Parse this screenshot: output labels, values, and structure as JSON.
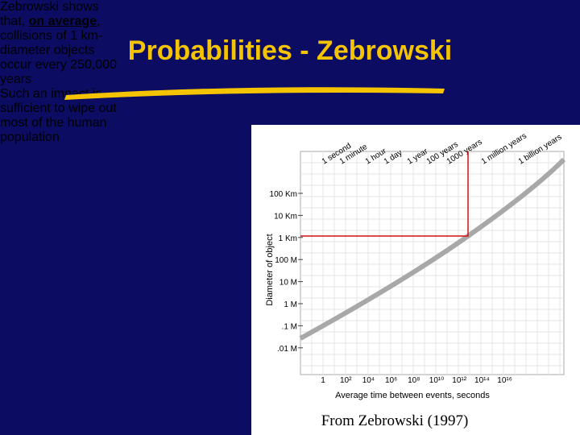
{
  "slide": {
    "title": "Probabilities - Zebrowski",
    "bullets": [
      {
        "lines": [
          [
            "Zebrowski shows"
          ],
          [
            "that, ",
            "on average",
            ","
          ],
          [
            "collisions of 1 km-"
          ],
          [
            "diameter objects"
          ],
          [
            "occur every 250,000"
          ],
          [
            "years"
          ]
        ]
      },
      {
        "lines": [
          [
            "Such an impact is"
          ],
          [
            "sufficient to wipe out"
          ],
          [
            "most of the human"
          ],
          [
            "population"
          ]
        ]
      }
    ],
    "figure": {
      "y_label": "Diameter of object",
      "x_label": "Average time between events, seconds",
      "yticks": [
        "100 Km",
        "10 Km",
        "1 Km",
        "100 M",
        "10 M",
        "1 M",
        ".1 M",
        ".01 M"
      ],
      "xticks": [
        "1",
        "10²",
        "10⁴",
        "10⁶",
        "10⁸",
        "10¹⁰",
        "10¹²",
        "10¹⁴",
        "10¹⁶"
      ],
      "top_labels": [
        "1 second",
        "1 minute",
        "1 hour",
        "1 day",
        "1 year",
        "100 years",
        "1000 years",
        "1 million years",
        "1 billion years"
      ]
    },
    "caption": "From Zebrowski (1997)"
  }
}
